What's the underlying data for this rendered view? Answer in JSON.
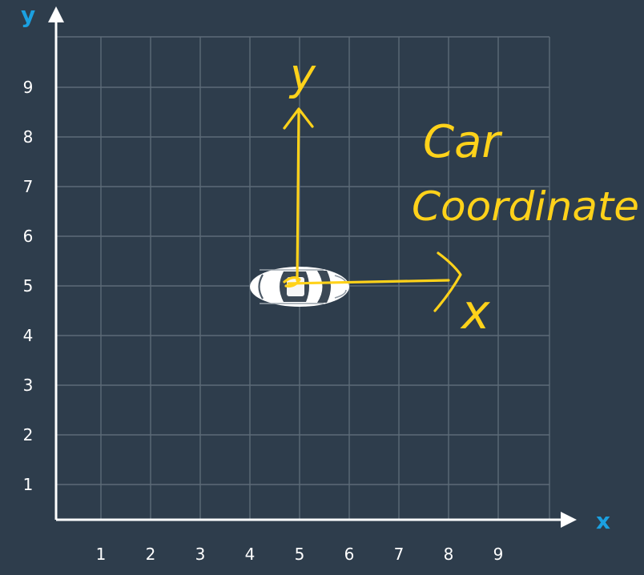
{
  "axes": {
    "x_label": "x",
    "y_label": "y",
    "x_ticks": [
      "1",
      "2",
      "3",
      "4",
      "5",
      "6",
      "7",
      "8",
      "9"
    ],
    "y_ticks": [
      "1",
      "2",
      "3",
      "4",
      "5",
      "6",
      "7",
      "8",
      "9"
    ]
  },
  "annotation": {
    "line1": "Car",
    "line2": "Coordinate",
    "car_x_label": "x",
    "car_y_label": "y"
  },
  "car": {
    "x": 5,
    "y": 5
  },
  "colors": {
    "background": "#2e3d4c",
    "grid": "#5d6b78",
    "axis": "#ffffff",
    "axis_letters": "#1ba0e0",
    "annotation": "#ffd21a",
    "car_body": "#ffffff"
  }
}
